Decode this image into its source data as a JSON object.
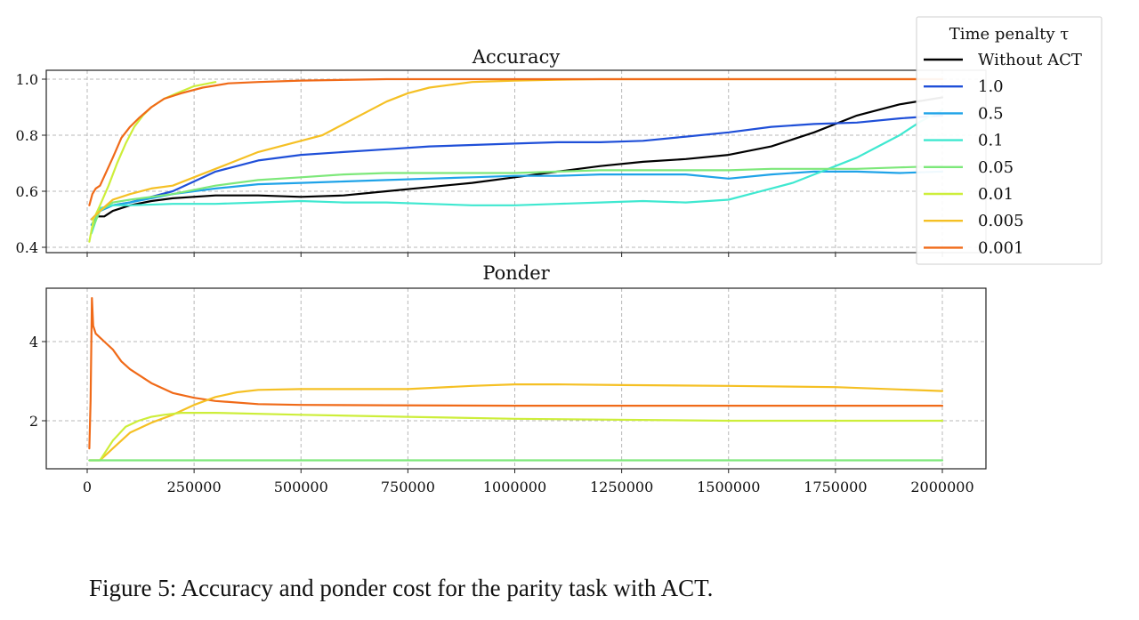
{
  "caption": "Figure 5: Accuracy and ponder cost for the parity task with ACT.",
  "chart_data": [
    {
      "type": "line",
      "title": "Accuracy",
      "xlim": [
        0,
        2000000
      ],
      "ylim": [
        0.4,
        1.0
      ],
      "yticks": [
        "0.4",
        "0.6",
        "0.8",
        "1.0"
      ],
      "yticks_values": [
        0.4,
        0.6,
        0.8,
        1.0
      ],
      "grid": true,
      "legend": {
        "title": "Time penalty τ",
        "placement": "top-right, outside",
        "entries": [
          {
            "label": "Without ACT",
            "color": "#000000"
          },
          {
            "label": "1.0",
            "color": "#1f4fd8"
          },
          {
            "label": "0.5",
            "color": "#1fa3e8"
          },
          {
            "label": "0.1",
            "color": "#3fe8d0"
          },
          {
            "label": "0.05",
            "color": "#7de87a"
          },
          {
            "label": "0.01",
            "color": "#cdee3a"
          },
          {
            "label": "0.005",
            "color": "#f5c024"
          },
          {
            "label": "0.001",
            "color": "#f06a18"
          }
        ]
      },
      "series": [
        {
          "name": "Without ACT",
          "color": "#000000",
          "x": [
            10000,
            20000,
            40000,
            60000,
            100000,
            150000,
            200000,
            300000,
            400000,
            500000,
            600000,
            700000,
            800000,
            900000,
            1000000,
            1100000,
            1200000,
            1300000,
            1400000,
            1500000,
            1600000,
            1700000,
            1800000,
            1900000,
            2000000
          ],
          "y": [
            0.5,
            0.51,
            0.51,
            0.53,
            0.55,
            0.565,
            0.575,
            0.585,
            0.585,
            0.58,
            0.585,
            0.6,
            0.615,
            0.63,
            0.65,
            0.67,
            0.69,
            0.705,
            0.715,
            0.73,
            0.76,
            0.81,
            0.87,
            0.91,
            0.935
          ]
        },
        {
          "name": "1.0",
          "color": "#1f4fd8",
          "x": [
            10000,
            30000,
            60000,
            100000,
            200000,
            300000,
            400000,
            500000,
            600000,
            700000,
            800000,
            900000,
            1000000,
            1100000,
            1200000,
            1300000,
            1400000,
            1500000,
            1600000,
            1700000,
            1800000,
            1900000,
            2000000
          ],
          "y": [
            0.5,
            0.53,
            0.55,
            0.56,
            0.6,
            0.67,
            0.71,
            0.73,
            0.74,
            0.75,
            0.76,
            0.765,
            0.77,
            0.775,
            0.775,
            0.78,
            0.795,
            0.81,
            0.83,
            0.84,
            0.845,
            0.86,
            0.87
          ]
        },
        {
          "name": "0.5",
          "color": "#1fa3e8",
          "x": [
            10000,
            30000,
            60000,
            100000,
            200000,
            300000,
            400000,
            500000,
            600000,
            700000,
            800000,
            900000,
            1000000,
            1100000,
            1200000,
            1300000,
            1400000,
            1500000,
            1600000,
            1700000,
            1800000,
            1900000,
            2000000
          ],
          "y": [
            0.48,
            0.53,
            0.55,
            0.56,
            0.59,
            0.61,
            0.625,
            0.63,
            0.635,
            0.64,
            0.645,
            0.65,
            0.655,
            0.655,
            0.66,
            0.66,
            0.66,
            0.645,
            0.66,
            0.67,
            0.67,
            0.665,
            0.67
          ]
        },
        {
          "name": "0.1",
          "color": "#3fe8d0",
          "x": [
            10000,
            30000,
            60000,
            100000,
            200000,
            300000,
            400000,
            500000,
            600000,
            700000,
            800000,
            900000,
            1000000,
            1100000,
            1200000,
            1300000,
            1400000,
            1500000,
            1550000,
            1600000,
            1650000,
            1700000,
            1750000,
            1800000,
            1850000,
            1900000,
            1950000,
            2000000
          ],
          "y": [
            0.45,
            0.54,
            0.55,
            0.55,
            0.555,
            0.555,
            0.56,
            0.565,
            0.56,
            0.56,
            0.555,
            0.55,
            0.55,
            0.555,
            0.56,
            0.565,
            0.56,
            0.57,
            0.59,
            0.61,
            0.63,
            0.66,
            0.69,
            0.72,
            0.76,
            0.8,
            0.85,
            0.89
          ]
        },
        {
          "name": "0.05",
          "color": "#7de87a",
          "x": [
            10000,
            30000,
            60000,
            100000,
            200000,
            300000,
            400000,
            500000,
            600000,
            700000,
            800000,
            900000,
            1000000,
            1100000,
            1200000,
            1300000,
            1400000,
            1500000,
            1600000,
            1700000,
            1800000,
            1900000,
            2000000
          ],
          "y": [
            0.46,
            0.53,
            0.56,
            0.57,
            0.59,
            0.62,
            0.64,
            0.65,
            0.66,
            0.665,
            0.665,
            0.665,
            0.665,
            0.67,
            0.675,
            0.675,
            0.675,
            0.675,
            0.68,
            0.68,
            0.68,
            0.685,
            0.69
          ]
        },
        {
          "name": "0.01",
          "color": "#cdee3a",
          "x": [
            5000,
            15000,
            30000,
            50000,
            70000,
            90000,
            110000,
            130000,
            150000,
            180000,
            210000,
            250000,
            300000
          ],
          "y": [
            0.42,
            0.5,
            0.55,
            0.62,
            0.7,
            0.77,
            0.83,
            0.87,
            0.9,
            0.93,
            0.95,
            0.975,
            0.99
          ]
        },
        {
          "name": "0.005",
          "color": "#f5c024",
          "x": [
            10000,
            30000,
            60000,
            100000,
            150000,
            200000,
            300000,
            400000,
            500000,
            550000,
            600000,
            650000,
            700000,
            750000,
            800000,
            850000,
            900000,
            1000000,
            1100000,
            1200000,
            1500000,
            2000000
          ],
          "y": [
            0.5,
            0.53,
            0.57,
            0.59,
            0.61,
            0.62,
            0.68,
            0.74,
            0.78,
            0.8,
            0.84,
            0.88,
            0.92,
            0.95,
            0.97,
            0.98,
            0.99,
            0.995,
            0.998,
            1.0,
            1.0,
            1.0
          ]
        },
        {
          "name": "0.001",
          "color": "#f06a18",
          "x": [
            5000,
            12000,
            20000,
            30000,
            45000,
            60000,
            80000,
            100000,
            120000,
            150000,
            180000,
            220000,
            270000,
            330000,
            400000,
            500000,
            700000,
            1000000,
            1500000,
            2000000
          ],
          "y": [
            0.55,
            0.59,
            0.61,
            0.62,
            0.67,
            0.72,
            0.79,
            0.83,
            0.86,
            0.9,
            0.93,
            0.95,
            0.97,
            0.985,
            0.99,
            0.995,
            1.0,
            1.0,
            1.0,
            1.0
          ]
        }
      ]
    },
    {
      "type": "line",
      "title": "Ponder",
      "xlim": [
        0,
        2000000
      ],
      "ylim": [
        0.9,
        5.3
      ],
      "yticks": [
        "2",
        "4"
      ],
      "yticks_values": [
        2,
        4
      ],
      "xticks": [
        "0",
        "250000",
        "500000",
        "750000",
        "1000000",
        "1250000",
        "1500000",
        "1750000",
        "2000000"
      ],
      "xticks_values": [
        0,
        250000,
        500000,
        750000,
        1000000,
        1250000,
        1500000,
        1750000,
        2000000
      ],
      "grid": true,
      "series": [
        {
          "name": "0.001",
          "color": "#f06a18",
          "x": [
            5000,
            8000,
            11000,
            14000,
            20000,
            40000,
            60000,
            80000,
            100000,
            150000,
            200000,
            250000,
            300000,
            400000,
            500000,
            700000,
            1000000,
            1500000,
            2000000
          ],
          "y": [
            1.3,
            2.5,
            5.1,
            4.4,
            4.2,
            4.0,
            3.8,
            3.5,
            3.3,
            2.95,
            2.7,
            2.58,
            2.5,
            2.42,
            2.4,
            2.39,
            2.38,
            2.38,
            2.38
          ]
        },
        {
          "name": "0.005",
          "color": "#f5c024",
          "x": [
            5000,
            30000,
            60000,
            100000,
            150000,
            200000,
            250000,
            300000,
            350000,
            400000,
            500000,
            600000,
            750000,
            900000,
            1000000,
            1100000,
            1250000,
            1500000,
            1750000,
            2000000
          ],
          "y": [
            1.0,
            1.0,
            1.3,
            1.7,
            1.95,
            2.15,
            2.4,
            2.6,
            2.72,
            2.78,
            2.8,
            2.8,
            2.8,
            2.88,
            2.92,
            2.92,
            2.9,
            2.88,
            2.85,
            2.75
          ]
        },
        {
          "name": "0.01",
          "color": "#cdee3a",
          "x": [
            5000,
            30000,
            60000,
            90000,
            120000,
            150000,
            180000,
            220000,
            300000,
            500000,
            750000,
            1000000,
            1500000,
            2000000
          ],
          "y": [
            1.0,
            1.0,
            1.5,
            1.85,
            2.0,
            2.1,
            2.15,
            2.2,
            2.2,
            2.15,
            2.1,
            2.05,
            2.0,
            2.0
          ]
        },
        {
          "name": "0.05",
          "color": "#7de87a",
          "x": [
            5000,
            500000,
            1000000,
            1500000,
            2000000
          ],
          "y": [
            1.0,
            1.0,
            1.0,
            1.0,
            1.0
          ]
        }
      ]
    }
  ]
}
